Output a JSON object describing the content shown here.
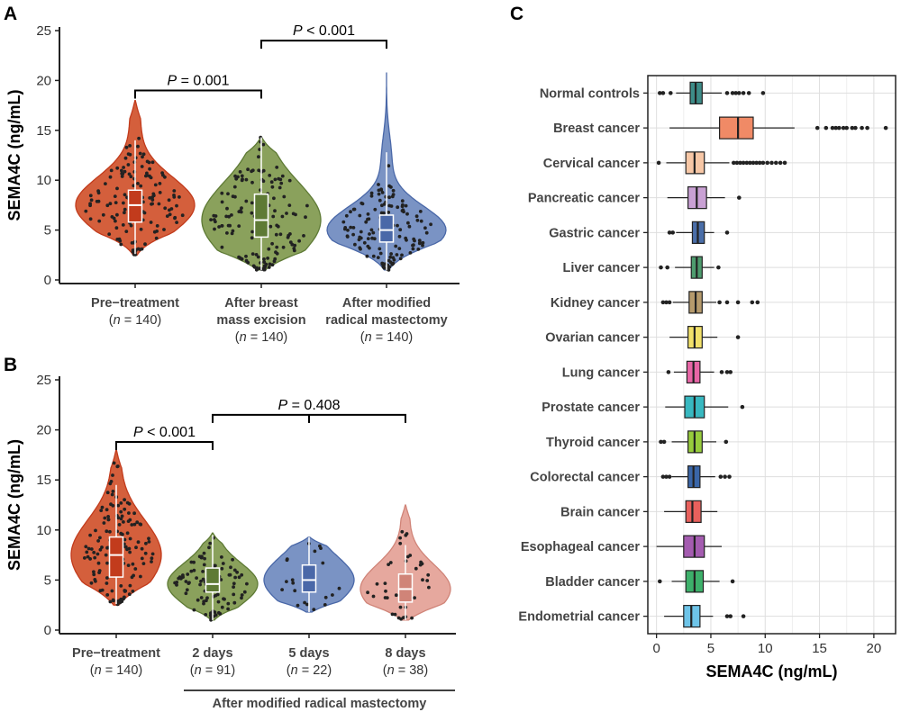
{
  "chart_data": [
    {
      "type": "violin",
      "panel": "A",
      "ylabel": "SEMA4C (ng/mL)",
      "ylim": [
        0,
        25
      ],
      "yticks": [
        0,
        5,
        10,
        15,
        20,
        25
      ],
      "categories": [
        {
          "label": "Pre−treatment",
          "label2": "",
          "n_text": "140",
          "color": "#d45f3c",
          "stroke": "#c23b1c",
          "box": {
            "q1": 5.8,
            "median": 7.5,
            "q3": 9.0,
            "wlo": 2.6,
            "whi": 14.0
          },
          "range": [
            2.5,
            18.0
          ]
        },
        {
          "label": "After breast",
          "label2": "mass excision",
          "n_text": "140",
          "color": "#8aa15c",
          "stroke": "#5e7a35",
          "box": {
            "q1": 4.3,
            "median": 6.0,
            "q3": 8.6,
            "wlo": 1.0,
            "whi": 14.3
          },
          "range": [
            1.0,
            14.3
          ]
        },
        {
          "label": "After modified",
          "label2": "radical mastectomy",
          "n_text": "140",
          "color": "#7a93c4",
          "stroke": "#4a68a8",
          "box": {
            "q1": 3.8,
            "median": 5.0,
            "q3": 6.5,
            "wlo": 1.0,
            "whi": 12.8
          },
          "range": [
            1.0,
            20.8
          ]
        }
      ],
      "comparisons": [
        {
          "from": 0,
          "to": 1,
          "y": 19.0,
          "text": "P = 0.001"
        },
        {
          "from": 1,
          "to": 2,
          "y": 24.0,
          "text": "P < 0.001"
        }
      ]
    },
    {
      "type": "violin",
      "panel": "B",
      "ylabel": "SEMA4C (ng/mL)",
      "ylim": [
        0,
        25
      ],
      "yticks": [
        0,
        5,
        10,
        15,
        20,
        25
      ],
      "group_label": "After modified radical mastectomy",
      "categories": [
        {
          "label": "Pre−treatment",
          "n_text": "140",
          "color": "#d45f3c",
          "stroke": "#c23b1c",
          "box": {
            "q1": 5.3,
            "median": 7.5,
            "q3": 9.3,
            "wlo": 2.6,
            "whi": 14.5
          },
          "range": [
            2.5,
            18.0
          ]
        },
        {
          "label": "2 days",
          "n_text": "91",
          "color": "#8aa15c",
          "stroke": "#5e7a35",
          "box": {
            "q1": 3.8,
            "median": 4.6,
            "q3": 6.2,
            "wlo": 1.0,
            "whi": 9.5
          },
          "range": [
            1.0,
            9.7
          ]
        },
        {
          "label": "5 days",
          "n_text": "22",
          "color": "#7a93c4",
          "stroke": "#4a68a8",
          "box": {
            "q1": 3.8,
            "median": 5.0,
            "q3": 6.5,
            "wlo": 1.8,
            "whi": 9.3
          },
          "range": [
            1.8,
            9.3
          ]
        },
        {
          "label": "8 days",
          "n_text": "38",
          "color": "#e6a89e",
          "stroke": "#d08478",
          "box": {
            "q1": 2.8,
            "median": 4.1,
            "q3": 5.6,
            "wlo": 1.0,
            "whi": 8.5
          },
          "range": [
            1.0,
            12.5
          ]
        }
      ],
      "comparisons": [
        {
          "from": 0,
          "to": 1,
          "y": 18.8,
          "text": "P < 0.001"
        },
        {
          "from": 1,
          "to": 3,
          "y": 21.5,
          "text": "P = 0.408",
          "tick_mid": 2
        }
      ]
    },
    {
      "type": "boxplot",
      "panel": "C",
      "orientation": "horizontal",
      "xlabel": "SEMA4C (ng/mL)",
      "xlim": [
        -0.8,
        22.0
      ],
      "xticks": [
        0,
        5,
        10,
        15,
        20
      ],
      "grid": true,
      "categories": [
        {
          "name": "Normal controls",
          "color": "#3d8c88",
          "q1": 3.1,
          "median": 3.6,
          "q3": 4.2,
          "wlo": 1.8,
          "whi": 6.0,
          "outliers": [
            0.3,
            0.6,
            1.3,
            6.5,
            7.0,
            7.3,
            7.6,
            8.0,
            8.5,
            9.8
          ]
        },
        {
          "name": "Breast cancer",
          "color": "#f08a66",
          "q1": 5.8,
          "median": 7.5,
          "q3": 8.9,
          "wlo": 1.2,
          "whi": 12.7,
          "outliers": [
            14.8,
            15.6,
            16.2,
            16.5,
            16.8,
            17.2,
            17.5,
            18.0,
            18.3,
            18.9,
            19.4,
            21.1
          ]
        },
        {
          "name": "Cervical cancer",
          "color": "#f7c7a6",
          "q1": 2.7,
          "median": 3.5,
          "q3": 4.4,
          "wlo": 0.9,
          "whi": 6.7,
          "outliers": [
            0.2,
            7.1,
            7.4,
            7.7,
            8.0,
            8.3,
            8.6,
            8.9,
            9.2,
            9.5,
            9.8,
            10.2,
            10.6,
            11.0,
            11.4,
            11.8
          ]
        },
        {
          "name": "Pancreatic cancer",
          "color": "#c9a1d4",
          "q1": 2.9,
          "median": 3.7,
          "q3": 4.6,
          "wlo": 1.0,
          "whi": 6.3,
          "outliers": [
            7.6
          ]
        },
        {
          "name": "Gastric cancer",
          "color": "#4a6ea8",
          "q1": 3.3,
          "median": 3.8,
          "q3": 4.4,
          "wlo": 1.8,
          "whi": 5.3,
          "outliers": [
            1.2,
            1.5,
            6.5
          ]
        },
        {
          "name": "Liver cancer",
          "color": "#4e9c6e",
          "q1": 3.2,
          "median": 3.7,
          "q3": 4.2,
          "wlo": 1.7,
          "whi": 5.3,
          "outliers": [
            0.4,
            1.0,
            5.7
          ]
        },
        {
          "name": "Kidney cancer",
          "color": "#b59a6c",
          "q1": 3.0,
          "median": 3.6,
          "q3": 4.2,
          "wlo": 1.5,
          "whi": 5.5,
          "outliers": [
            0.6,
            0.9,
            1.2,
            5.8,
            6.5,
            7.5,
            8.8,
            9.3
          ]
        },
        {
          "name": "Ovarian cancer",
          "color": "#f2e16a",
          "q1": 2.9,
          "median": 3.5,
          "q3": 4.2,
          "wlo": 1.2,
          "whi": 5.6,
          "outliers": [
            7.5
          ]
        },
        {
          "name": "Lung cancer",
          "color": "#e866a6",
          "q1": 2.8,
          "median": 3.4,
          "q3": 4.0,
          "wlo": 1.6,
          "whi": 5.3,
          "outliers": [
            1.1,
            6.0,
            6.5,
            6.8
          ]
        },
        {
          "name": "Prostate cancer",
          "color": "#38b8c0",
          "q1": 2.6,
          "median": 3.5,
          "q3": 4.4,
          "wlo": 0.8,
          "whi": 6.6,
          "outliers": [
            7.9
          ]
        },
        {
          "name": "Thyroid cancer",
          "color": "#97cc3c",
          "q1": 2.9,
          "median": 3.5,
          "q3": 4.2,
          "wlo": 1.4,
          "whi": 5.5,
          "outliers": [
            0.4,
            0.7,
            6.4
          ]
        },
        {
          "name": "Colorectal cancer",
          "color": "#3a66a8",
          "q1": 2.9,
          "median": 3.4,
          "q3": 4.0,
          "wlo": 1.4,
          "whi": 5.4,
          "outliers": [
            0.6,
            0.9,
            1.2,
            5.9,
            6.3,
            6.7
          ]
        },
        {
          "name": "Brain cancer",
          "color": "#e8605c",
          "q1": 2.7,
          "median": 3.3,
          "q3": 4.1,
          "wlo": 0.7,
          "whi": 5.6,
          "outliers": []
        },
        {
          "name": "Esophageal cancer",
          "color": "#a45cb0",
          "q1": 2.5,
          "median": 3.5,
          "q3": 4.4,
          "wlo": 0.0,
          "whi": 6.0,
          "outliers": []
        },
        {
          "name": "Bladder cancer",
          "color": "#3db06a",
          "q1": 2.7,
          "median": 3.5,
          "q3": 4.3,
          "wlo": 1.4,
          "whi": 5.8,
          "outliers": [
            0.3,
            7.0
          ]
        },
        {
          "name": "Endometrial cancer",
          "color": "#6ec4e8",
          "q1": 2.5,
          "median": 3.2,
          "q3": 4.0,
          "wlo": 0.7,
          "whi": 5.2,
          "outliers": [
            6.5,
            6.8,
            8.0
          ]
        }
      ]
    }
  ],
  "panels": {
    "a": "A",
    "b": "B",
    "c": "C"
  }
}
